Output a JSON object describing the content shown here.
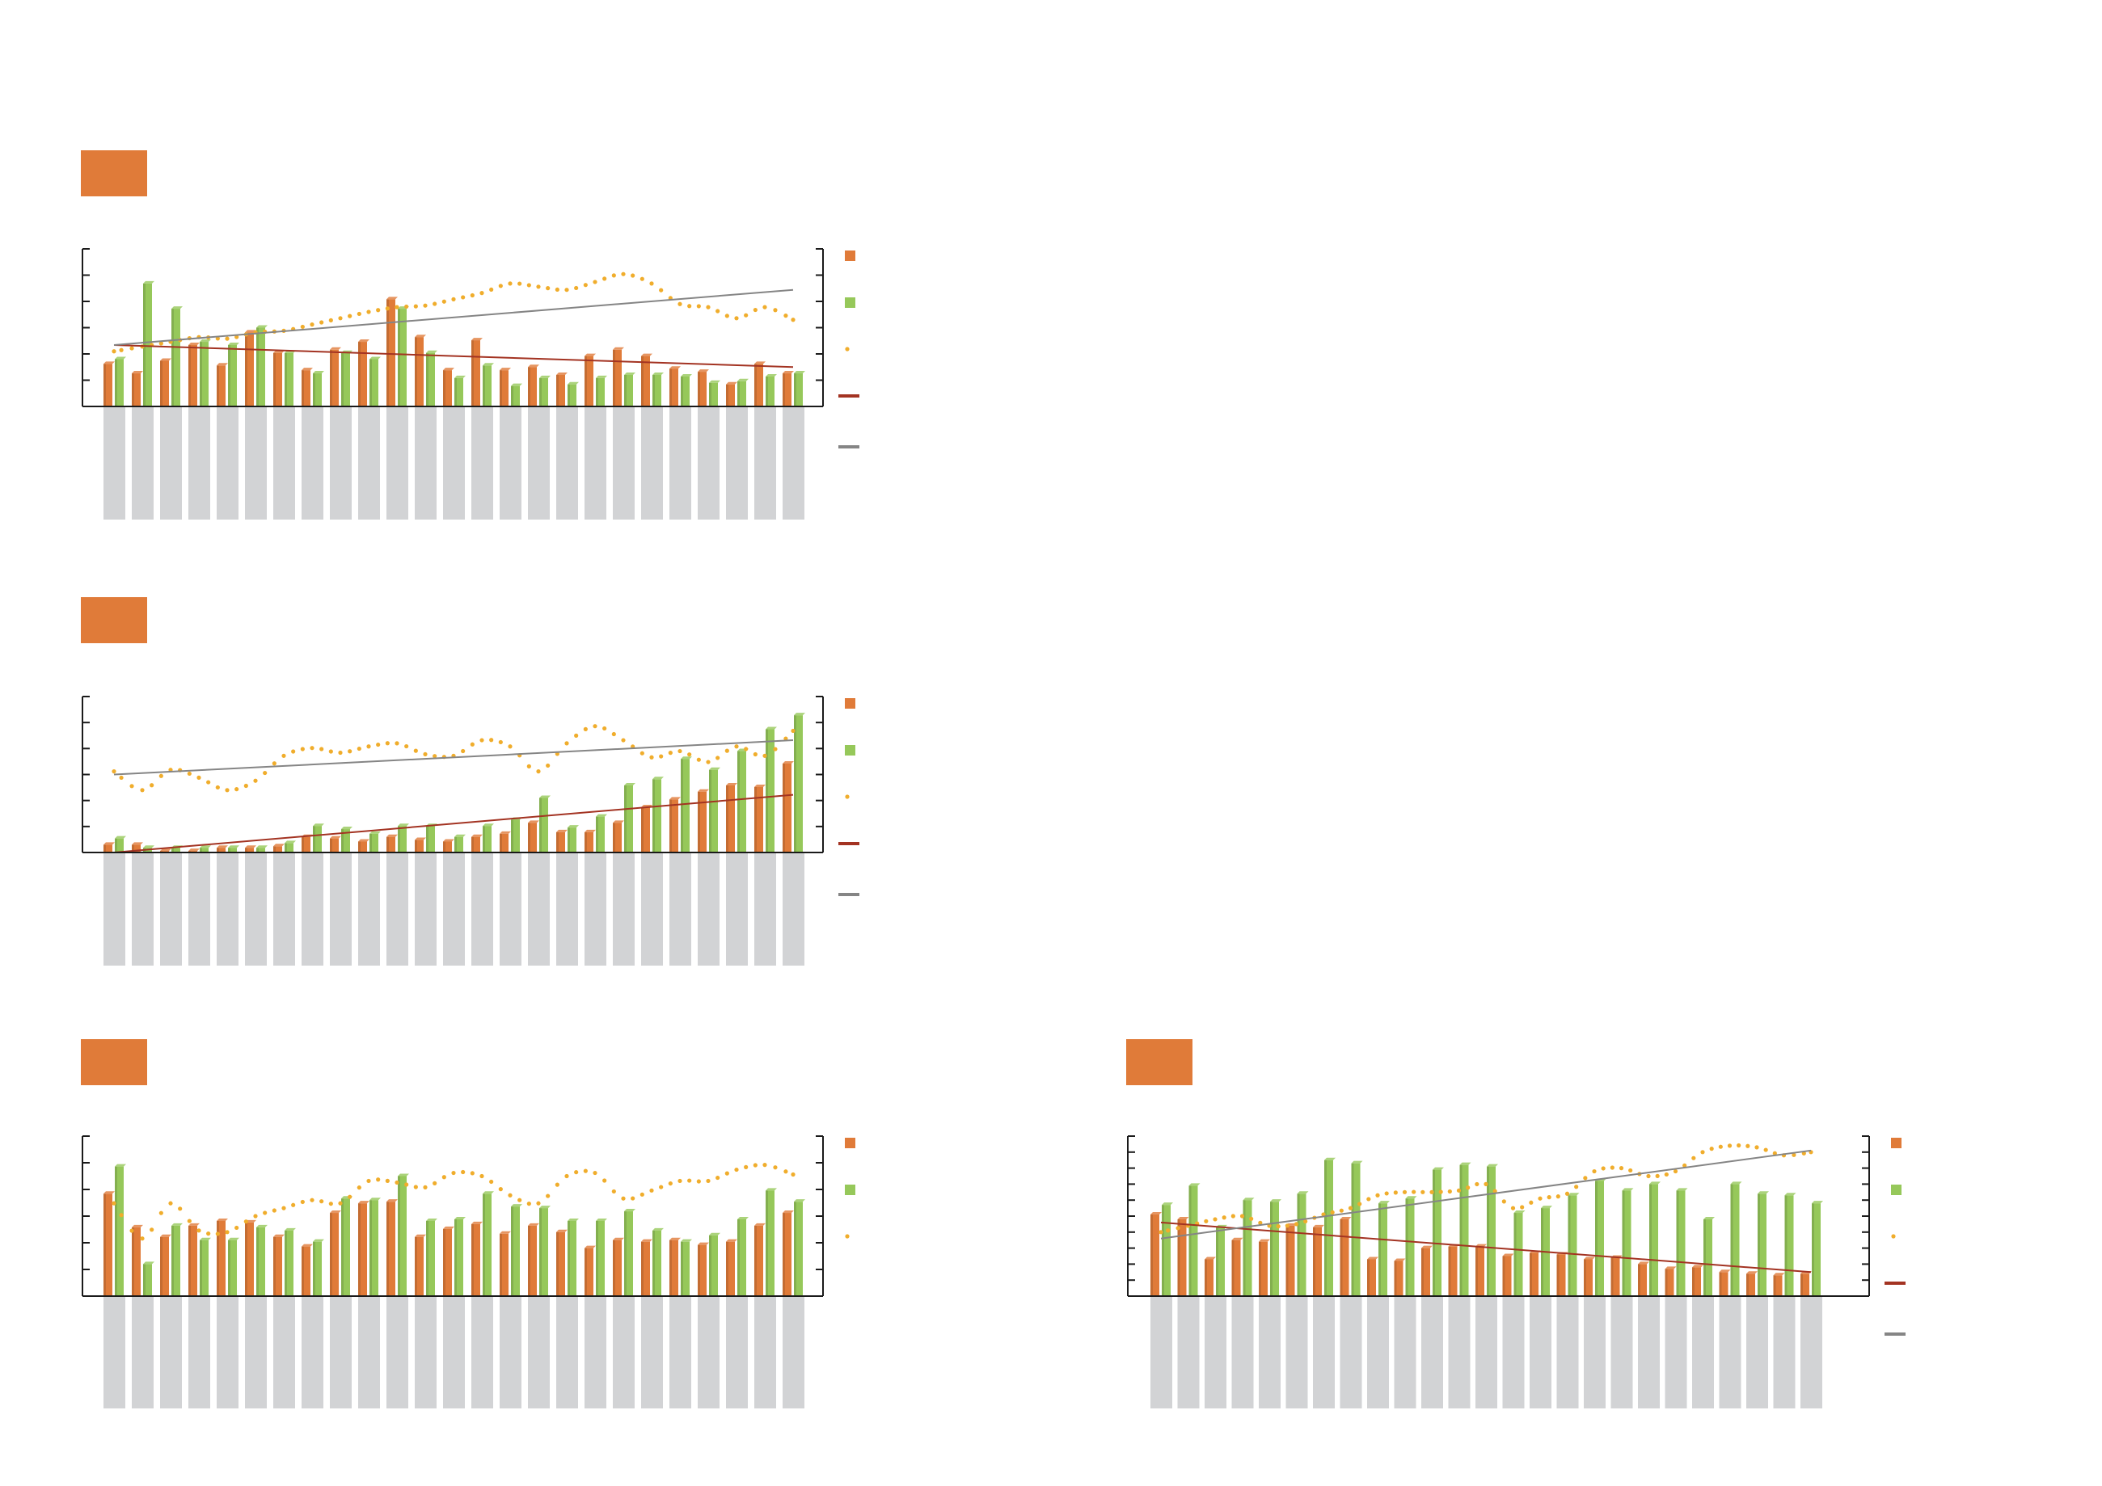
{
  "colors": {
    "orange": "#e07b39",
    "green": "#96c85a",
    "dots": "#f0ad2c",
    "red_line": "#a33322",
    "grey_line": "#858585",
    "grey_bar": "#d2d3d5",
    "header_box": "#e07b39",
    "axis": "#1a1a1a"
  },
  "chart_data": [
    {
      "type": "bar",
      "categories_count": 25,
      "series": [
        {
          "values": [
            27,
            21,
            29,
            39,
            26,
            47,
            34,
            23,
            36,
            41,
            68,
            44,
            23,
            42,
            23,
            25,
            20,
            32,
            36,
            32,
            24,
            22,
            14,
            27,
            21
          ]
        },
        {
          "values": [
            30,
            78,
            62,
            41,
            39,
            50,
            34,
            21,
            34,
            30,
            62,
            34,
            18,
            26,
            13,
            18,
            14,
            18,
            20,
            20,
            19,
            15,
            16,
            19,
            21
          ]
        },
        {
          "values": [
            35,
            38,
            41,
            44,
            43,
            47,
            48,
            52,
            56,
            60,
            63,
            64,
            68,
            72,
            78,
            76,
            74,
            79,
            84,
            78,
            65,
            63,
            56,
            63,
            55
          ]
        },
        {
          "values": [
            39,
            25
          ]
        },
        {
          "values": [
            39,
            74
          ]
        }
      ],
      "ylim": [
        0,
        100
      ]
    },
    {
      "type": "bar",
      "categories_count": 25,
      "series": [
        {
          "values": [
            5,
            5,
            1,
            1,
            3,
            3,
            4,
            10,
            9,
            7,
            10,
            8,
            7,
            10,
            12,
            19,
            13,
            13,
            19,
            29,
            34,
            39,
            43,
            42,
            57
          ]
        },
        {
          "values": [
            9,
            3,
            3,
            3,
            3,
            3,
            6,
            17,
            15,
            12,
            17,
            17,
            10,
            17,
            21,
            35,
            16,
            23,
            43,
            47,
            60,
            53,
            65,
            79,
            88
          ]
        },
        {
          "values": [
            52,
            40,
            53,
            48,
            40,
            46,
            62,
            67,
            64,
            68,
            70,
            63,
            62,
            72,
            68,
            52,
            70,
            81,
            72,
            61,
            65,
            58,
            68,
            62,
            78
          ]
        },
        {
          "values": [
            0,
            37
          ]
        },
        {
          "values": [
            50,
            72
          ]
        }
      ],
      "ylim": [
        0,
        100
      ]
    },
    {
      "type": "bar",
      "categories_count": 25,
      "series": [
        {
          "values": [
            64,
            43,
            37,
            44,
            47,
            46,
            37,
            31,
            52,
            58,
            59,
            37,
            42,
            45,
            39,
            44,
            40,
            30,
            35,
            34,
            35,
            32,
            34,
            44,
            52
          ]
        },
        {
          "values": [
            81,
            20,
            44,
            35,
            35,
            43,
            41,
            34,
            61,
            60,
            75,
            47,
            48,
            64,
            56,
            55,
            47,
            47,
            53,
            41,
            34,
            38,
            48,
            66,
            59
          ]
        },
        {
          "values": [
            58,
            36,
            58,
            41,
            40,
            50,
            55,
            60,
            58,
            72,
            71,
            68,
            77,
            75,
            63,
            58,
            75,
            77,
            61,
            66,
            72,
            72,
            79,
            82,
            76
          ]
        }
      ],
      "ylim": [
        -5,
        100
      ]
    },
    {
      "type": "bar",
      "categories_count": 25,
      "series": [
        {
          "values": [
            51,
            48,
            23,
            35,
            34,
            44,
            43,
            48,
            23,
            22,
            30,
            31,
            31,
            25,
            27,
            26,
            23,
            24,
            20,
            17,
            18,
            15,
            14,
            13,
            14
          ]
        },
        {
          "values": [
            57,
            69,
            43,
            60,
            59,
            64,
            85,
            83,
            58,
            61,
            79,
            82,
            81,
            52,
            55,
            63,
            72,
            66,
            70,
            66,
            48,
            70,
            64,
            63,
            58
          ]
        },
        {
          "values": [
            40,
            44,
            48,
            50,
            44,
            45,
            51,
            55,
            63,
            65,
            65,
            66,
            70,
            55,
            61,
            64,
            78,
            80,
            75,
            78,
            90,
            94,
            93,
            88,
            90
          ]
        },
        {
          "values": [
            46,
            15
          ]
        },
        {
          "values": [
            36,
            91
          ]
        }
      ],
      "ylim": [
        0,
        100
      ]
    }
  ]
}
